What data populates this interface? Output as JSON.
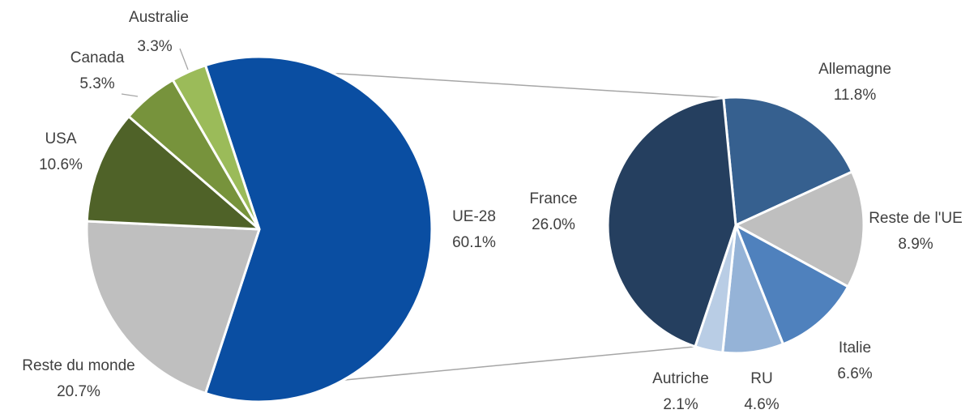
{
  "chart_data": [
    {
      "type": "pie",
      "categories": [
        "UE-28",
        "Reste du monde",
        "USA",
        "Canada",
        "Australie"
      ],
      "values": [
        60.1,
        20.7,
        10.6,
        5.3,
        3.3
      ],
      "value_labels": [
        "60.1%",
        "20.7%",
        "10.6%",
        "5.3%",
        "3.3%"
      ],
      "colors": [
        "#0a4ea2",
        "#bfbfbf",
        "#4f6228",
        "#77933c",
        "#9bbb59"
      ]
    },
    {
      "type": "pie",
      "categories": [
        "Allemagne",
        "Reste de l'UE",
        "Italie",
        "RU",
        "Autriche",
        "France"
      ],
      "values": [
        11.8,
        8.9,
        6.6,
        4.6,
        2.1,
        26.0
      ],
      "value_labels": [
        "11.8%",
        "8.9%",
        "6.6%",
        "4.6%",
        "2.1%",
        "26.0%"
      ],
      "colors": [
        "#36608f",
        "#bfbfbf",
        "#4f81bd",
        "#95b3d7",
        "#b9cde5",
        "#253f5f"
      ]
    }
  ]
}
